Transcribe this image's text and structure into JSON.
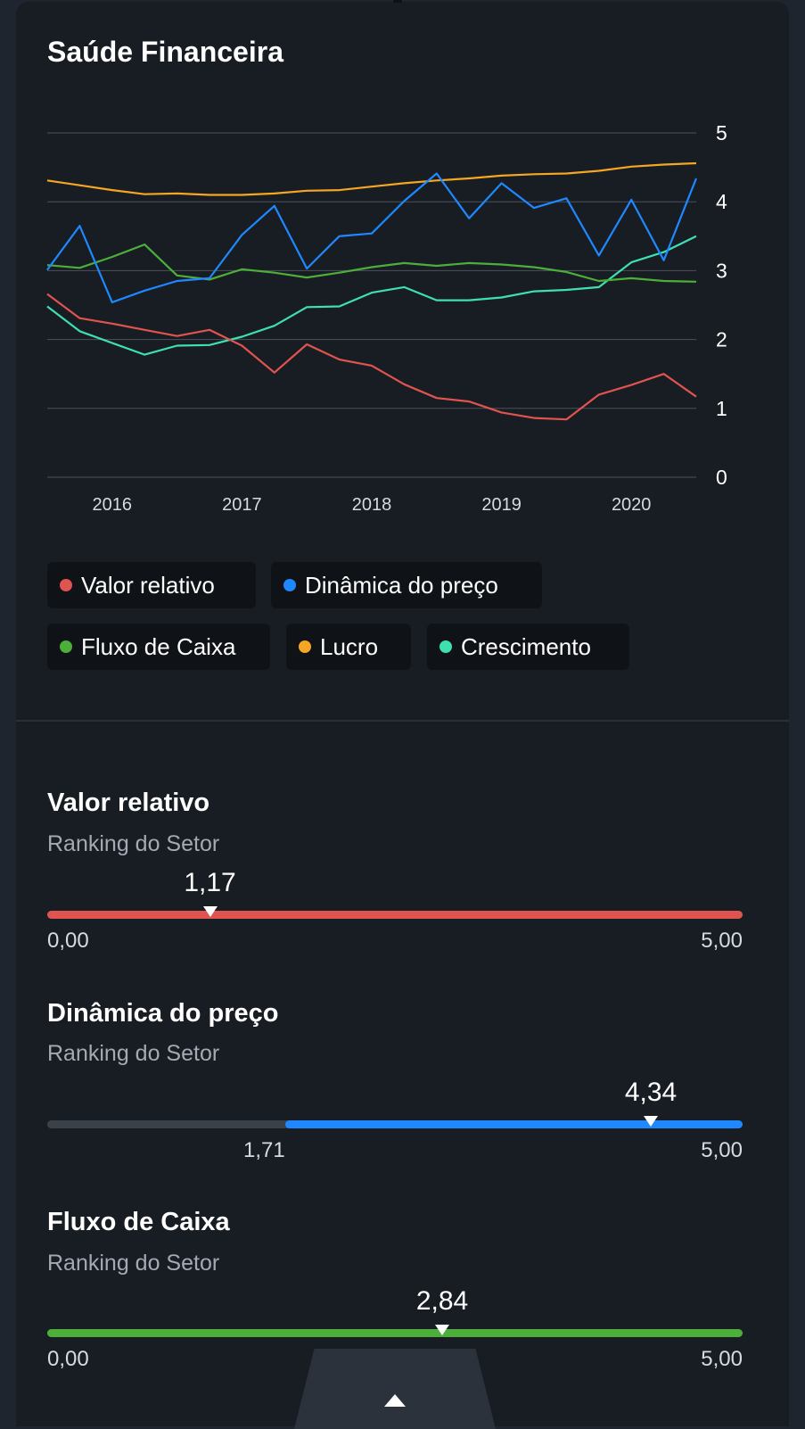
{
  "title": "Saúde Financeira",
  "colors": {
    "valor_relativo": "#e0544f",
    "dinamica": "#1f88ff",
    "fluxo": "#4caf3a",
    "lucro": "#f5a623",
    "crescimento": "#3fe0b0"
  },
  "chart_data": {
    "type": "line",
    "x_tick_labels": [
      "2016",
      "2017",
      "2018",
      "2019",
      "2020"
    ],
    "x_ticks": [
      2016,
      2017,
      2018,
      2019,
      2020
    ],
    "y_ticks": [
      0,
      1,
      2,
      3,
      4,
      5
    ],
    "ylim": [
      0,
      5
    ],
    "xlim": [
      2015.5,
      2020.5
    ],
    "grid": true,
    "legend_position": "bottom",
    "x": [
      2015.5,
      2015.75,
      2016.0,
      2016.25,
      2016.5,
      2016.75,
      2017.0,
      2017.25,
      2017.5,
      2017.75,
      2018.0,
      2018.25,
      2018.5,
      2018.75,
      2019.0,
      2019.25,
      2019.5,
      2019.75,
      2020.0,
      2020.25,
      2020.5
    ],
    "series": [
      {
        "name": "Valor relativo",
        "color": "#e0544f",
        "values": [
          2.66,
          2.31,
          2.23,
          2.14,
          2.05,
          2.14,
          1.91,
          1.52,
          1.93,
          1.71,
          1.62,
          1.35,
          1.15,
          1.1,
          0.94,
          0.86,
          0.84,
          1.2,
          1.34,
          1.5,
          1.17
        ]
      },
      {
        "name": "Dinâmica do preço",
        "color": "#1f88ff",
        "values": [
          3.01,
          3.65,
          2.54,
          2.71,
          2.85,
          2.89,
          3.52,
          3.94,
          3.03,
          3.5,
          3.54,
          4.01,
          4.41,
          3.76,
          4.27,
          3.91,
          4.05,
          3.22,
          4.03,
          3.15,
          4.34
        ]
      },
      {
        "name": "Fluxo de Caixa",
        "color": "#4caf3a",
        "values": [
          3.08,
          3.04,
          3.2,
          3.38,
          2.93,
          2.87,
          3.02,
          2.97,
          2.9,
          2.97,
          3.05,
          3.11,
          3.07,
          3.11,
          3.09,
          3.05,
          2.98,
          2.85,
          2.89,
          2.85,
          2.84
        ]
      },
      {
        "name": "Lucro",
        "color": "#f5a623",
        "values": [
          4.31,
          4.24,
          4.17,
          4.11,
          4.12,
          4.1,
          4.1,
          4.12,
          4.16,
          4.17,
          4.22,
          4.27,
          4.31,
          4.34,
          4.38,
          4.4,
          4.41,
          4.45,
          4.51,
          4.54,
          4.56
        ]
      },
      {
        "name": "Crescimento",
        "color": "#3fe0b0",
        "values": [
          2.48,
          2.12,
          1.95,
          1.78,
          1.91,
          1.92,
          2.04,
          2.2,
          2.47,
          2.48,
          2.68,
          2.76,
          2.57,
          2.57,
          2.61,
          2.7,
          2.72,
          2.76,
          3.12,
          3.27,
          3.5
        ]
      }
    ]
  },
  "legend": [
    {
      "label": "Valor relativo",
      "color": "#e0544f"
    },
    {
      "label": "Dinâmica do preço",
      "color": "#1f88ff"
    },
    {
      "label": "Fluxo de Caixa",
      "color": "#4caf3a"
    },
    {
      "label": "Lucro",
      "color": "#f5a623"
    },
    {
      "label": "Crescimento",
      "color": "#3fe0b0"
    }
  ],
  "metrics": [
    {
      "title": "Valor relativo",
      "subtitle": "Ranking do Setor",
      "value": 1.17,
      "value_label": "1,17",
      "range_min": 0,
      "range_max": 5,
      "fill_from": 0,
      "left_label": "0,00",
      "right_label": "5,00",
      "color": "#e0544f"
    },
    {
      "title": "Dinâmica do preço",
      "subtitle": "Ranking do Setor",
      "value": 4.34,
      "value_label": "4,34",
      "range_min": 0,
      "range_max": 5,
      "fill_from": 1.71,
      "left_label": "1,71",
      "right_label": "5,00",
      "color": "#1f88ff"
    },
    {
      "title": "Fluxo de Caixa",
      "subtitle": "Ranking do Setor",
      "value": 2.84,
      "value_label": "2,84",
      "range_min": 0,
      "range_max": 5,
      "fill_from": 0,
      "left_label": "0,00",
      "right_label": "5,00",
      "color": "#4caf3a"
    }
  ]
}
